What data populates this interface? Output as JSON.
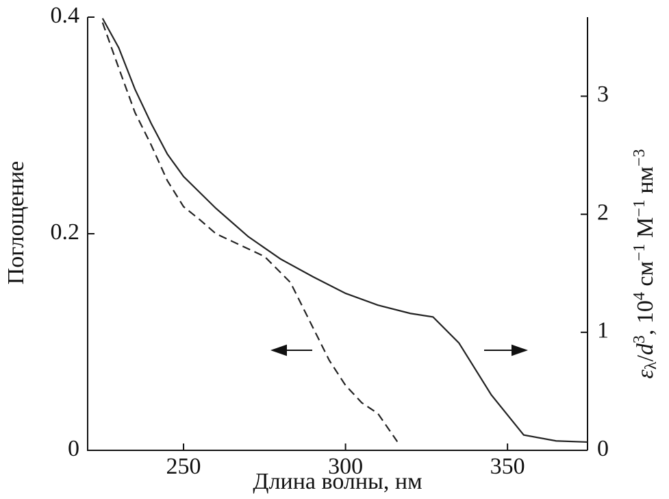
{
  "chart_data": {
    "type": "line",
    "xlabel": "Длина волны, нм",
    "ylabel": "Поглощение",
    "y2label": [
      "ε",
      "λ",
      "/",
      "d",
      "3",
      ", 10",
      "4",
      " см",
      "−1",
      " М",
      "−1",
      " нм",
      "−3"
    ],
    "xlim": [
      220.4,
      374.7
    ],
    "xticks": [
      250,
      300,
      350
    ],
    "ylim": [
      0,
      0.4
    ],
    "yticks": [
      0,
      0.2,
      0.4
    ],
    "y2lim": [
      0,
      3.67
    ],
    "y2ticks": [
      0,
      1,
      2,
      3
    ],
    "series": [
      {
        "name": "Поглощение",
        "color": "#222",
        "dash": true,
        "axis": "y",
        "x": [
          225,
          230,
          235,
          240,
          245,
          250,
          255,
          260,
          265,
          270,
          275,
          280,
          283,
          290,
          295,
          300,
          305,
          310,
          316
        ],
        "values": [
          0.395,
          0.353,
          0.312,
          0.282,
          0.249,
          0.225,
          0.213,
          0.2,
          0.193,
          0.186,
          0.179,
          0.164,
          0.155,
          0.113,
          0.083,
          0.06,
          0.044,
          0.034,
          0.008
        ]
      },
      {
        "name": "ελ/d3",
        "color": "#222",
        "dash": false,
        "axis": "y2",
        "x": [
          225,
          230,
          235,
          240,
          245,
          250,
          260,
          265,
          270,
          280,
          290,
          300,
          310,
          320,
          327,
          335,
          345,
          355,
          365,
          374.7
        ],
        "values": [
          3.66,
          3.41,
          3.06,
          2.77,
          2.51,
          2.32,
          2.05,
          1.93,
          1.81,
          1.62,
          1.47,
          1.33,
          1.23,
          1.16,
          1.13,
          0.91,
          0.47,
          0.13,
          0.08,
          0.07
        ]
      }
    ]
  }
}
